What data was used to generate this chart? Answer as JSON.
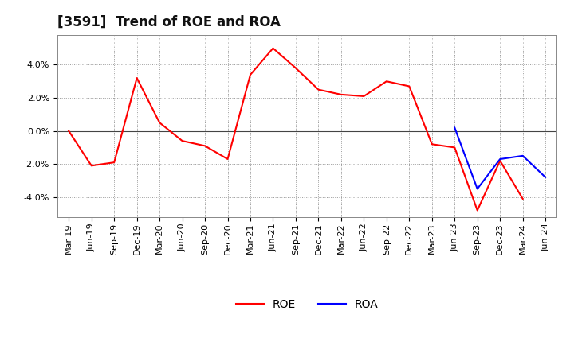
{
  "title": "[3591]  Trend of ROE and ROA",
  "x_labels": [
    "Mar-19",
    "Jun-19",
    "Sep-19",
    "Dec-19",
    "Mar-20",
    "Jun-20",
    "Sep-20",
    "Dec-20",
    "Mar-21",
    "Jun-21",
    "Sep-21",
    "Dec-21",
    "Mar-22",
    "Jun-22",
    "Sep-22",
    "Dec-22",
    "Mar-23",
    "Jun-23",
    "Sep-23",
    "Dec-23",
    "Mar-24",
    "Jun-24"
  ],
  "roe_values": [
    0.0,
    -2.1,
    -1.9,
    3.2,
    0.5,
    -0.6,
    -0.9,
    -1.7,
    3.4,
    5.0,
    3.8,
    2.5,
    2.2,
    2.1,
    3.0,
    2.7,
    -0.8,
    -1.0,
    -4.8,
    -1.8,
    -4.1,
    null
  ],
  "roa_x_indices": [
    17,
    18,
    19,
    20,
    21
  ],
  "roa_values": [
    0.2,
    -3.5,
    -1.7,
    -1.5,
    -2.8
  ],
  "ylim": [
    -5.2,
    5.8
  ],
  "yticks": [
    -4.0,
    -2.0,
    0.0,
    2.0,
    4.0
  ],
  "roe_color": "#FF0000",
  "roa_color": "#0000FF",
  "background_color": "#FFFFFF",
  "plot_bg_color": "#FFFFFF",
  "grid_color": "#999999",
  "title_fontsize": 12,
  "tick_fontsize": 8,
  "legend_fontsize": 10
}
